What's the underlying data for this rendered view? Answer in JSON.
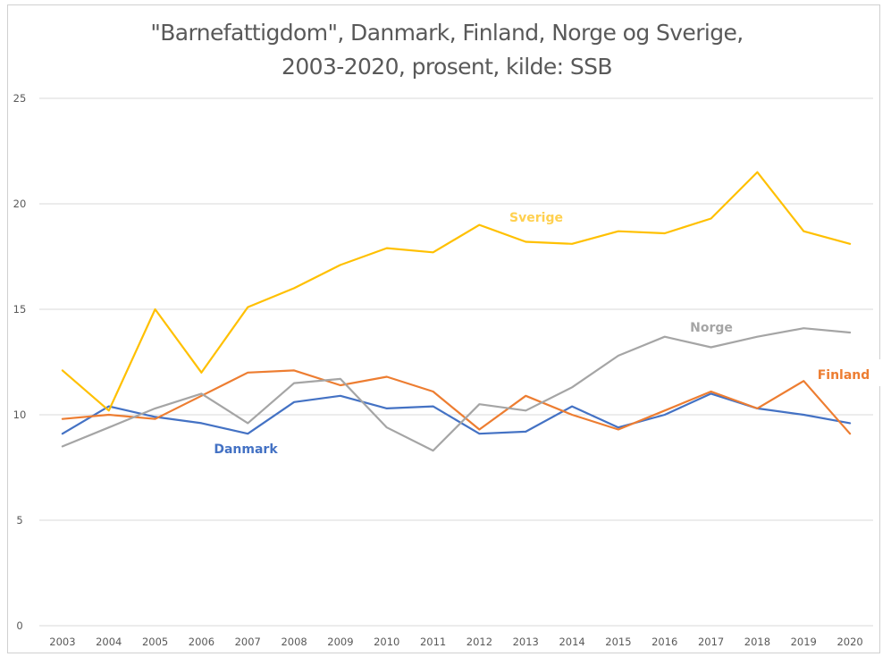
{
  "chart_data": {
    "type": "line",
    "title": "\"Barnefattigdom\", Danmark, Finland, Norge og Sverige, 2003-2020, prosent, kilde: SSB",
    "title_lines": [
      "\"Barnefattigdom\", Danmark, Finland, Norge og Sverige,",
      "2003-2020, prosent, kilde: SSB"
    ],
    "xlabel": "",
    "ylabel": "",
    "ylim": [
      0,
      25
    ],
    "y_ticks": [
      "0",
      "5",
      "10",
      "15",
      "20",
      "25"
    ],
    "y_tick_values": [
      0,
      5,
      10,
      15,
      20,
      25
    ],
    "grid": true,
    "legend": "inline-labels",
    "categories": [
      "2003",
      "2004",
      "2005",
      "2006",
      "2007",
      "2008",
      "2009",
      "2010",
      "2011",
      "2012",
      "2013",
      "2014",
      "2015",
      "2016",
      "2017",
      "2018",
      "2019",
      "2020"
    ],
    "series": [
      {
        "name": "Danmark",
        "color": "#4472C4",
        "values": [
          9.1,
          10.4,
          9.9,
          9.6,
          9.1,
          10.6,
          10.9,
          10.3,
          10.4,
          9.1,
          9.2,
          10.4,
          9.4,
          10.0,
          11.0,
          10.3,
          10.0,
          9.6
        ],
        "label_anchor_year": "2008",
        "label_offset_value": -1.5
      },
      {
        "name": "Finland",
        "color": "#ED7D31",
        "values": [
          9.8,
          10.0,
          9.8,
          10.9,
          12.0,
          12.1,
          11.4,
          11.8,
          11.1,
          9.3,
          10.9,
          10.0,
          9.3,
          10.2,
          11.1,
          10.3,
          11.6,
          9.1
        ],
        "label_anchor_year": "2020",
        "label_offset_value": 1.0
      },
      {
        "name": "Norge",
        "color": "#A5A5A5",
        "values": [
          8.5,
          9.4,
          10.3,
          11.0,
          9.6,
          11.5,
          11.7,
          9.4,
          8.3,
          10.5,
          10.2,
          11.3,
          12.8,
          13.7,
          13.2,
          13.7,
          14.1,
          13.9
        ],
        "label_anchor_year": "2017",
        "label_offset_value": 1.2
      },
      {
        "name": "Sverige",
        "color": "#FFC000",
        "values": [
          12.1,
          10.2,
          15.0,
          12.0,
          15.1,
          16.0,
          17.1,
          17.9,
          17.7,
          19.0,
          18.2,
          18.1,
          18.7,
          18.6,
          19.3,
          21.5,
          18.7,
          18.1
        ],
        "label_anchor_year": "2013",
        "label_offset_value": 1.0
      }
    ]
  }
}
